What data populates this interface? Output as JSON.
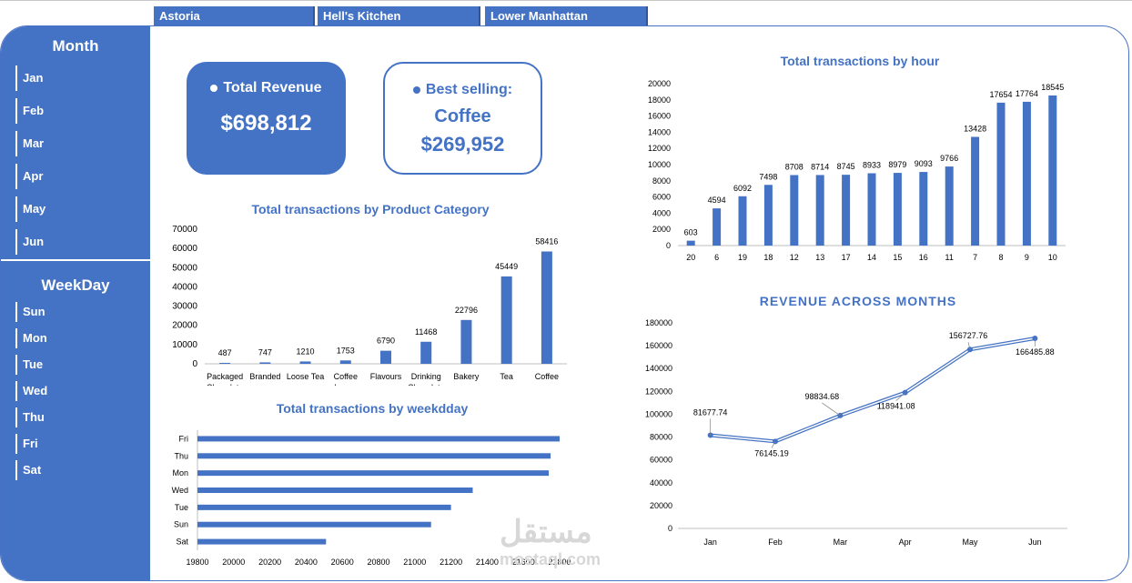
{
  "locations": [
    "Astoria",
    "Hell's Kitchen",
    "Lower Manhattan"
  ],
  "sidebar": {
    "month_title": "Month",
    "months": [
      "Jan",
      "Feb",
      "Mar",
      "Apr",
      "May",
      "Jun"
    ],
    "weekday_title": "WeekDay",
    "weekdays": [
      "Sun",
      "Mon",
      "Tue",
      "Wed",
      "Thu",
      "Fri",
      "Sat"
    ]
  },
  "kpi": {
    "revenue_label": "Total Revenue",
    "revenue_value": "$698,812",
    "best_label": "Best selling:",
    "best_product": "Coffee",
    "best_value": "$269,952"
  },
  "watermark": {
    "line1": "مستقل",
    "line2": "mostaql.com"
  },
  "colors": {
    "accent": "#4472c4",
    "sidebar": "#4472c4"
  },
  "chart_data": [
    {
      "id": "category",
      "type": "bar",
      "title": "Total transactions by Product Category",
      "categories": [
        "Packaged Chocolate",
        "Branded",
        "Loose Tea",
        "Coffee beans",
        "Flavours",
        "Drinking Chocolate",
        "Bakery",
        "Tea",
        "Coffee"
      ],
      "values": [
        487,
        747,
        1210,
        1753,
        6790,
        11468,
        22796,
        45449,
        58416
      ],
      "ylim": [
        0,
        70000
      ],
      "yticks": [
        0,
        10000,
        20000,
        30000,
        40000,
        50000,
        60000,
        70000
      ]
    },
    {
      "id": "weekday",
      "type": "bar",
      "orientation": "horizontal",
      "title": "Total transactions by weekdday",
      "categories": [
        "Fri",
        "Thu",
        "Mon",
        "Wed",
        "Tue",
        "Sun",
        "Sat"
      ],
      "values": [
        21800,
        21750,
        21740,
        21320,
        21200,
        21090,
        20510
      ],
      "xlim": [
        19800,
        21800
      ],
      "xticks": [
        19800,
        20000,
        20200,
        20400,
        20600,
        20800,
        21000,
        21200,
        21400,
        21600,
        21800
      ]
    },
    {
      "id": "hour",
      "type": "bar",
      "title": "Total transactions by hour",
      "categories": [
        "20",
        "6",
        "19",
        "18",
        "12",
        "13",
        "17",
        "14",
        "15",
        "16",
        "11",
        "7",
        "8",
        "9",
        "10"
      ],
      "values": [
        603,
        4594,
        6092,
        7498,
        8708,
        8714,
        8745,
        8933,
        8979,
        9093,
        9766,
        13428,
        17654,
        17764,
        18545
      ],
      "ylim": [
        0,
        20000
      ],
      "yticks": [
        0,
        2000,
        4000,
        6000,
        8000,
        10000,
        12000,
        14000,
        16000,
        18000,
        20000
      ]
    },
    {
      "id": "revenue",
      "type": "line",
      "title": "REVENUE ACROSS MONTHS",
      "categories": [
        "Jan",
        "Feb",
        "Mar",
        "Apr",
        "May",
        "Jun"
      ],
      "values": [
        81677.74,
        76145.19,
        98834.68,
        118941.08,
        156727.76,
        166485.88
      ],
      "labels": [
        "81677.74",
        "76145.19",
        "98834.68",
        "118941.08",
        "156727.76",
        "166485.88"
      ],
      "ylim": [
        0,
        180000
      ],
      "yticks": [
        0,
        20000,
        40000,
        60000,
        80000,
        100000,
        120000,
        140000,
        160000,
        180000
      ]
    }
  ]
}
